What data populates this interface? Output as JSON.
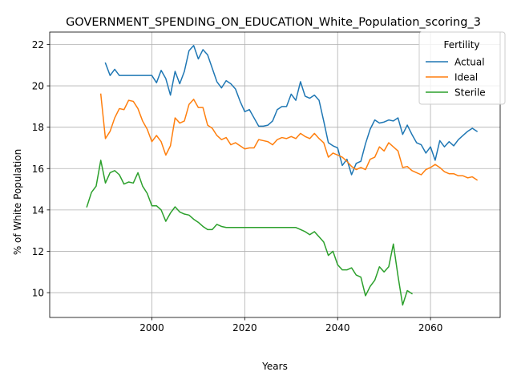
{
  "chart_data": {
    "type": "line",
    "title": "GOVERNMENT_SPENDING_ON_EDUCATION_White_Population_scoring_3",
    "xlabel": "Years",
    "ylabel": "% of White Population",
    "xlim": [
      1978,
      2075
    ],
    "ylim": [
      8.8,
      22.6
    ],
    "xticks": [
      2000,
      2020,
      2040,
      2060
    ],
    "yticks": [
      10,
      12,
      14,
      16,
      18,
      20,
      22
    ],
    "grid": true,
    "legend": {
      "title": "Fertility",
      "position": "top-right"
    },
    "series": [
      {
        "name": "Actual",
        "color": "#1f77b4",
        "x": [
          1990,
          1991,
          1992,
          1993,
          1994,
          1995,
          1996,
          1997,
          1998,
          1999,
          2000,
          2001,
          2002,
          2003,
          2004,
          2005,
          2006,
          2007,
          2008,
          2009,
          2010,
          2011,
          2012,
          2013,
          2014,
          2015,
          2016,
          2017,
          2018,
          2019,
          2020,
          2021,
          2022,
          2023,
          2024,
          2025,
          2026,
          2027,
          2028,
          2029,
          2030,
          2031,
          2032,
          2033,
          2034,
          2035,
          2036,
          2037,
          2038,
          2039,
          2040,
          2041,
          2042,
          2043,
          2044,
          2045,
          2046,
          2047,
          2048,
          2049,
          2050,
          2051,
          2052,
          2053,
          2054,
          2055,
          2056,
          2057,
          2058,
          2059,
          2060,
          2061,
          2062,
          2063,
          2064,
          2065,
          2066,
          2067,
          2068,
          2069,
          2070
        ],
        "y": [
          21.1,
          20.5,
          20.8,
          20.5,
          20.5,
          20.5,
          20.5,
          20.5,
          20.5,
          20.5,
          20.5,
          20.15,
          20.75,
          20.35,
          19.55,
          20.7,
          20.1,
          20.7,
          21.7,
          21.95,
          21.3,
          21.75,
          21.5,
          20.85,
          20.2,
          19.9,
          20.25,
          20.1,
          19.85,
          19.25,
          18.75,
          18.85,
          18.45,
          18.05,
          18.05,
          18.1,
          18.3,
          18.85,
          19.0,
          19.0,
          19.6,
          19.3,
          20.2,
          19.5,
          19.4,
          19.55,
          19.3,
          18.3,
          17.25,
          17.1,
          17.0,
          16.15,
          16.45,
          15.7,
          16.25,
          16.35,
          17.2,
          17.9,
          18.35,
          18.2,
          18.25,
          18.35,
          18.3,
          18.45,
          17.65,
          18.1,
          17.65,
          17.25,
          17.15,
          16.75,
          17.05,
          16.4,
          17.35,
          17.05,
          17.3,
          17.1,
          17.4,
          17.6,
          17.8,
          17.95,
          17.8
        ]
      },
      {
        "name": "Ideal",
        "color": "#ff7f0e",
        "x": [
          1989,
          1990,
          1991,
          1992,
          1993,
          1994,
          1995,
          1996,
          1997,
          1998,
          1999,
          2000,
          2001,
          2002,
          2003,
          2004,
          2005,
          2006,
          2007,
          2008,
          2009,
          2010,
          2011,
          2012,
          2013,
          2014,
          2015,
          2016,
          2017,
          2018,
          2019,
          2020,
          2021,
          2022,
          2023,
          2024,
          2025,
          2026,
          2027,
          2028,
          2029,
          2030,
          2031,
          2032,
          2033,
          2034,
          2035,
          2036,
          2037,
          2038,
          2039,
          2040,
          2041,
          2042,
          2043,
          2044,
          2045,
          2046,
          2047,
          2048,
          2049,
          2050,
          2051,
          2052,
          2053,
          2054,
          2055,
          2056,
          2057,
          2058,
          2059,
          2060,
          2061,
          2062,
          2063,
          2064,
          2065,
          2066,
          2067,
          2068,
          2069,
          2070
        ],
        "y": [
          19.6,
          17.45,
          17.8,
          18.45,
          18.9,
          18.85,
          19.3,
          19.25,
          18.9,
          18.3,
          17.9,
          17.3,
          17.6,
          17.3,
          16.65,
          17.1,
          18.45,
          18.2,
          18.3,
          19.1,
          19.35,
          18.95,
          18.95,
          18.1,
          17.95,
          17.6,
          17.4,
          17.5,
          17.15,
          17.25,
          17.1,
          16.95,
          17.0,
          17.0,
          17.4,
          17.35,
          17.3,
          17.15,
          17.4,
          17.5,
          17.45,
          17.55,
          17.45,
          17.7,
          17.55,
          17.45,
          17.7,
          17.45,
          17.25,
          16.55,
          16.75,
          16.65,
          16.55,
          16.35,
          16.1,
          15.95,
          16.05,
          15.95,
          16.45,
          16.55,
          17.05,
          16.85,
          17.25,
          17.05,
          16.85,
          16.05,
          16.1,
          15.9,
          15.8,
          15.7,
          15.95,
          16.05,
          16.2,
          16.05,
          15.85,
          15.75,
          15.75,
          15.65,
          15.65,
          15.55,
          15.6,
          15.45
        ]
      },
      {
        "name": "Sterile",
        "color": "#2ca02c",
        "x": [
          1986,
          1987,
          1988,
          1989,
          1990,
          1991,
          1992,
          1993,
          1994,
          1995,
          1996,
          1997,
          1998,
          1999,
          2000,
          2001,
          2002,
          2003,
          2004,
          2005,
          2006,
          2007,
          2008,
          2009,
          2010,
          2011,
          2012,
          2013,
          2014,
          2015,
          2016,
          2017,
          2018,
          2019,
          2020,
          2021,
          2022,
          2023,
          2024,
          2025,
          2026,
          2027,
          2028,
          2029,
          2030,
          2031,
          2032,
          2033,
          2034,
          2035,
          2036,
          2037,
          2038,
          2039,
          2040,
          2041,
          2042,
          2043,
          2044,
          2045,
          2046,
          2047,
          2048,
          2049,
          2050,
          2051,
          2052,
          2053,
          2054,
          2055,
          2056
        ],
        "y": [
          14.15,
          14.85,
          15.15,
          16.4,
          15.3,
          15.8,
          15.9,
          15.7,
          15.25,
          15.35,
          15.3,
          15.8,
          15.15,
          14.8,
          14.2,
          14.2,
          14.0,
          13.45,
          13.85,
          14.15,
          13.9,
          13.8,
          13.75,
          13.55,
          13.4,
          13.2,
          13.05,
          13.05,
          13.3,
          13.2,
          13.15,
          13.15,
          13.15,
          13.15,
          13.15,
          13.15,
          13.15,
          13.15,
          13.15,
          13.15,
          13.15,
          13.15,
          13.15,
          13.15,
          13.15,
          13.15,
          13.05,
          12.95,
          12.8,
          12.95,
          12.7,
          12.45,
          11.8,
          12.0,
          11.35,
          11.1,
          11.1,
          11.2,
          10.85,
          10.75,
          9.85,
          10.3,
          10.6,
          11.25,
          11.0,
          11.25,
          12.35,
          10.8,
          9.4,
          10.1,
          9.95
        ]
      }
    ]
  }
}
